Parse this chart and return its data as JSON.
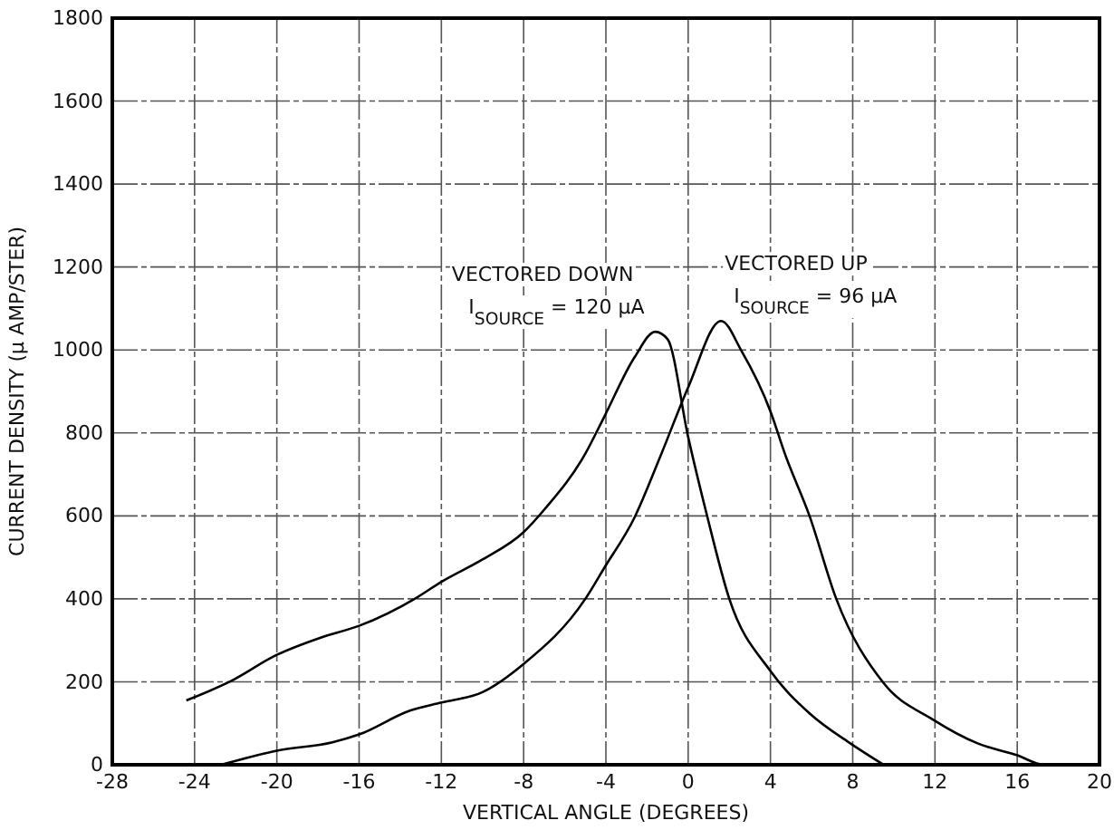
{
  "chart_data": {
    "type": "line",
    "xlabel": "VERTICAL ANGLE (DEGREES)",
    "ylabel": "CURRENT DENSITY (μ AMP/STER)",
    "xlim": [
      -28,
      20
    ],
    "xticks": [
      -28,
      -24,
      -20,
      -16,
      -12,
      -8,
      -4,
      0,
      4,
      8,
      12,
      16,
      20
    ],
    "ylim": [
      0,
      1800
    ],
    "yticks": [
      0,
      200,
      400,
      600,
      800,
      1000,
      1200,
      1400,
      1600,
      1800
    ],
    "grid": true,
    "line_style": "solid",
    "marker": "none",
    "series": [
      {
        "name": "VECTORED DOWN",
        "color": "#000000",
        "x": [
          -24.4,
          -22.3,
          -20,
          -17.9,
          -16,
          -13.2,
          -12,
          -10,
          -8,
          -7,
          -5,
          -4.1,
          -2.6,
          -1.6,
          -1,
          0,
          0.9,
          2,
          4,
          5.9,
          7.9,
          9.5
        ],
        "values": [
          155,
          200,
          265,
          306,
          335,
          403,
          441,
          495,
          561,
          615,
          750,
          837,
          983,
          1044,
          1026,
          790,
          604,
          400,
          226,
          124,
          51,
          0
        ]
      },
      {
        "name": "VECTORED UP",
        "color": "#000000",
        "x": [
          -22.7,
          -20,
          -17.3,
          -16,
          -13.5,
          -12,
          -10,
          -8,
          -5,
          -4.1,
          -2.6,
          -1.3,
          0,
          1.6,
          2.6,
          4,
          4.7,
          5.9,
          7.2,
          9.5,
          11.9,
          14.1,
          16,
          17.3,
          20
        ],
        "values": [
          0,
          34,
          54,
          73,
          131,
          150,
          175,
          243,
          400,
          473,
          597,
          750,
          910,
          1070,
          997,
          852,
          750,
          600,
          400,
          197,
          109,
          51,
          23,
          0,
          0
        ]
      }
    ],
    "annotations": [
      "I$_{SOURCE}$ = 120 μA",
      "I$_{SOURCE}$ = 96 μA"
    ]
  }
}
